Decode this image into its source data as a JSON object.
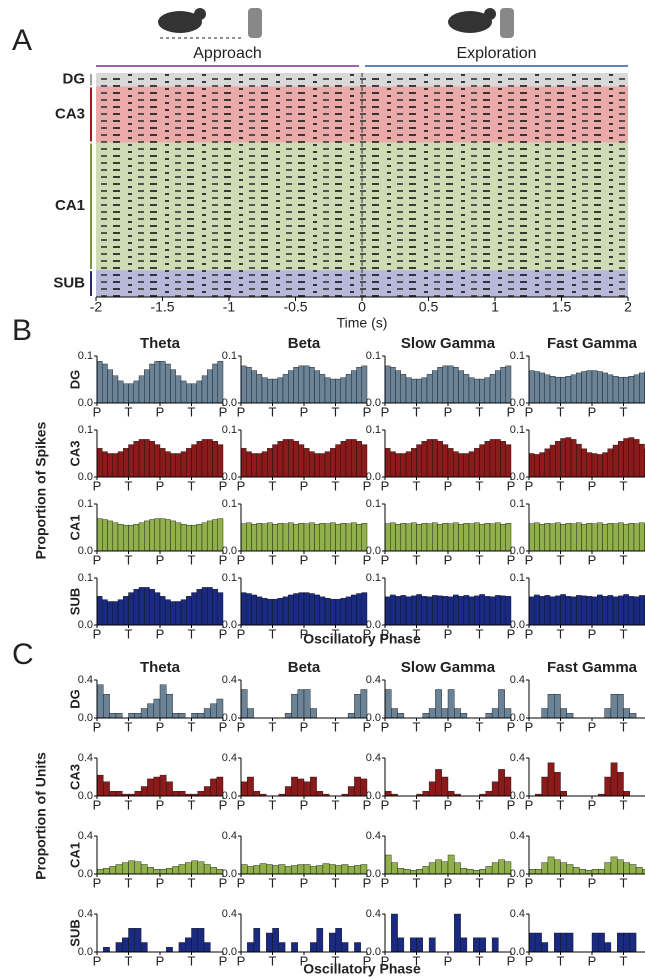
{
  "chart_data": [
    {
      "type": "raster",
      "label": "A",
      "xlabel": "Time (s)",
      "xlim": [
        -2,
        2
      ],
      "xticks": [
        -2,
        -1.5,
        -1,
        -0.5,
        0,
        0.5,
        1,
        1.5,
        2
      ],
      "epochs": [
        {
          "name": "Approach",
          "color": "#7b2f8f"
        },
        {
          "name": "Exploration",
          "color": "#2f5a9a"
        }
      ],
      "regions": [
        {
          "name": "DG",
          "color": "#d9d9d9",
          "label_color": "#a0a0a0"
        },
        {
          "name": "CA3",
          "color": "#eaaaaa",
          "label_color": "#a31a1a"
        },
        {
          "name": "CA1",
          "color": "#cddcb4",
          "label_color": "#7a9a3a"
        },
        {
          "name": "SUB",
          "color": "#b8b8da",
          "label_color": "#2b2b7a"
        }
      ]
    },
    {
      "type": "bar-grid",
      "label": "B",
      "ylabel": "Proportion of Spikes",
      "xlabel": "Oscillatory Phase",
      "columns": [
        "Theta",
        "Beta",
        "Slow Gamma",
        "Fast Gamma"
      ],
      "ylim": [
        0,
        0.1
      ],
      "yticks": [
        {
          "value": 0,
          "label": "0.0"
        },
        {
          "value": 0.1,
          "label": "0.1"
        }
      ],
      "xlim": [
        0,
        720
      ],
      "xticks": [
        {
          "value": 0,
          "label": "P"
        },
        {
          "value": 180,
          "label": "T"
        },
        {
          "value": 360,
          "label": "P"
        },
        {
          "value": 540,
          "label": "T"
        },
        {
          "value": 720,
          "label": "P"
        }
      ],
      "rows": [
        {
          "name": "DG",
          "color": "#6b8397",
          "label_color": "#a0a0a0",
          "values": [
            [
              0.089,
              0.083,
              0.071,
              0.058,
              0.047,
              0.041,
              0.041,
              0.047,
              0.058,
              0.071,
              0.083,
              0.089,
              0.089,
              0.083,
              0.071,
              0.058,
              0.047,
              0.041,
              0.041,
              0.047,
              0.058,
              0.071,
              0.083,
              0.089
            ],
            [
              0.079,
              0.076,
              0.069,
              0.061,
              0.054,
              0.051,
              0.051,
              0.054,
              0.061,
              0.069,
              0.076,
              0.079,
              0.079,
              0.076,
              0.069,
              0.061,
              0.054,
              0.051,
              0.051,
              0.054,
              0.061,
              0.069,
              0.076,
              0.079
            ],
            [
              0.079,
              0.076,
              0.069,
              0.061,
              0.054,
              0.051,
              0.051,
              0.054,
              0.061,
              0.069,
              0.076,
              0.079,
              0.079,
              0.076,
              0.069,
              0.061,
              0.054,
              0.051,
              0.051,
              0.054,
              0.061,
              0.069,
              0.076,
              0.079
            ],
            [
              0.069,
              0.067,
              0.064,
              0.06,
              0.057,
              0.055,
              0.055,
              0.057,
              0.06,
              0.064,
              0.067,
              0.069,
              0.069,
              0.067,
              0.064,
              0.06,
              0.057,
              0.055,
              0.055,
              0.057,
              0.06,
              0.064,
              0.067,
              0.069
            ]
          ]
        },
        {
          "name": "CA3",
          "color": "#8b1a1a",
          "label_color": "#a31a1a",
          "values": [
            [
              0.061,
              0.054,
              0.05,
              0.05,
              0.054,
              0.061,
              0.069,
              0.076,
              0.08,
              0.08,
              0.076,
              0.069,
              0.061,
              0.054,
              0.05,
              0.05,
              0.054,
              0.061,
              0.069,
              0.076,
              0.08,
              0.08,
              0.076,
              0.069
            ],
            [
              0.061,
              0.054,
              0.05,
              0.05,
              0.054,
              0.061,
              0.069,
              0.076,
              0.08,
              0.08,
              0.076,
              0.069,
              0.061,
              0.054,
              0.05,
              0.05,
              0.054,
              0.061,
              0.069,
              0.076,
              0.08,
              0.08,
              0.076,
              0.069
            ],
            [
              0.061,
              0.054,
              0.05,
              0.05,
              0.054,
              0.061,
              0.069,
              0.076,
              0.08,
              0.08,
              0.076,
              0.069,
              0.061,
              0.054,
              0.05,
              0.05,
              0.054,
              0.061,
              0.069,
              0.076,
              0.08,
              0.08,
              0.076,
              0.069
            ],
            [
              0.05,
              0.048,
              0.052,
              0.06,
              0.068,
              0.076,
              0.082,
              0.084,
              0.08,
              0.07,
              0.06,
              0.052,
              0.05,
              0.048,
              0.052,
              0.06,
              0.068,
              0.076,
              0.082,
              0.084,
              0.08,
              0.07,
              0.06,
              0.052
            ]
          ]
        },
        {
          "name": "CA1",
          "color": "#8fb04a",
          "label_color": "#808080",
          "values": [
            [
              0.069,
              0.067,
              0.064,
              0.06,
              0.057,
              0.055,
              0.055,
              0.057,
              0.06,
              0.064,
              0.067,
              0.069,
              0.069,
              0.067,
              0.064,
              0.06,
              0.057,
              0.055,
              0.055,
              0.057,
              0.06,
              0.064,
              0.067,
              0.069
            ],
            [
              0.058,
              0.06,
              0.057,
              0.059,
              0.058,
              0.06,
              0.057,
              0.059,
              0.058,
              0.06,
              0.057,
              0.059,
              0.058,
              0.06,
              0.057,
              0.059,
              0.058,
              0.06,
              0.057,
              0.059,
              0.058,
              0.06,
              0.057,
              0.059
            ],
            [
              0.058,
              0.06,
              0.057,
              0.059,
              0.058,
              0.06,
              0.057,
              0.059,
              0.058,
              0.06,
              0.057,
              0.059,
              0.058,
              0.06,
              0.057,
              0.059,
              0.058,
              0.06,
              0.057,
              0.059,
              0.058,
              0.06,
              0.057,
              0.059
            ],
            [
              0.058,
              0.06,
              0.057,
              0.059,
              0.058,
              0.06,
              0.057,
              0.059,
              0.058,
              0.06,
              0.057,
              0.059,
              0.058,
              0.06,
              0.057,
              0.059,
              0.058,
              0.06,
              0.057,
              0.059,
              0.058,
              0.06,
              0.057,
              0.059
            ]
          ]
        },
        {
          "name": "SUB",
          "color": "#1a2a80",
          "label_color": "#2b2b7a",
          "values": [
            [
              0.061,
              0.054,
              0.05,
              0.05,
              0.054,
              0.061,
              0.069,
              0.076,
              0.08,
              0.08,
              0.076,
              0.069,
              0.061,
              0.054,
              0.05,
              0.05,
              0.054,
              0.061,
              0.069,
              0.076,
              0.08,
              0.08,
              0.076,
              0.069
            ],
            [
              0.069,
              0.067,
              0.064,
              0.06,
              0.057,
              0.055,
              0.055,
              0.057,
              0.06,
              0.064,
              0.067,
              0.069,
              0.069,
              0.067,
              0.064,
              0.06,
              0.057,
              0.055,
              0.055,
              0.057,
              0.06,
              0.064,
              0.067,
              0.069
            ],
            [
              0.06,
              0.064,
              0.061,
              0.063,
              0.06,
              0.062,
              0.065,
              0.061,
              0.06,
              0.063,
              0.062,
              0.061,
              0.06,
              0.064,
              0.061,
              0.063,
              0.06,
              0.062,
              0.065,
              0.061,
              0.06,
              0.063,
              0.062,
              0.061
            ],
            [
              0.06,
              0.064,
              0.061,
              0.063,
              0.06,
              0.062,
              0.065,
              0.061,
              0.06,
              0.063,
              0.062,
              0.061,
              0.06,
              0.064,
              0.061,
              0.063,
              0.06,
              0.062,
              0.065,
              0.061,
              0.06,
              0.063,
              0.062,
              0.061
            ]
          ]
        }
      ]
    },
    {
      "type": "bar-grid",
      "label": "C",
      "ylabel": "Proportion of Units",
      "xlabel": "Oscillatory Phase",
      "columns": [
        "Theta",
        "Beta",
        "Slow Gamma",
        "Fast Gamma"
      ],
      "ylim": [
        0,
        0.4
      ],
      "yticks": [
        {
          "value": 0,
          "label": "0.0"
        },
        {
          "value": 0.4,
          "label": "0.4"
        }
      ],
      "xlim": [
        0,
        720
      ],
      "xticks": [
        {
          "value": 0,
          "label": "P"
        },
        {
          "value": 180,
          "label": "T"
        },
        {
          "value": 360,
          "label": "P"
        },
        {
          "value": 540,
          "label": "T"
        },
        {
          "value": 720,
          "label": "P"
        }
      ],
      "rows": [
        {
          "name": "DG",
          "color": "#6b8397",
          "label_color": "#a0a0a0",
          "values": [
            [
              0.35,
              0.25,
              0.05,
              0.05,
              0,
              0.05,
              0.05,
              0.1,
              0.15,
              0.2,
              0.35,
              0.25,
              0.05,
              0.05,
              0,
              0.05,
              0.05,
              0.1,
              0.15,
              0.2
            ],
            [
              0.3,
              0.1,
              0,
              0,
              0,
              0,
              0,
              0.05,
              0.25,
              0.3,
              0.3,
              0.1,
              0,
              0,
              0,
              0,
              0,
              0.05,
              0.25,
              0.3
            ],
            [
              0.3,
              0.1,
              0.05,
              0,
              0,
              0,
              0.05,
              0.1,
              0.3,
              0.1,
              0.3,
              0.1,
              0.05,
              0,
              0,
              0,
              0.05,
              0.1,
              0.3,
              0.1
            ],
            [
              0,
              0,
              0.1,
              0.25,
              0.25,
              0.1,
              0.05,
              0,
              0,
              0,
              0,
              0,
              0.1,
              0.25,
              0.25,
              0.1,
              0.05,
              0,
              0,
              0
            ]
          ]
        },
        {
          "name": "CA3",
          "color": "#8b1a1a",
          "label_color": "#a31a1a",
          "values": [
            [
              0.22,
              0.15,
              0.05,
              0.05,
              0.02,
              0.02,
              0.05,
              0.1,
              0.18,
              0.2,
              0.22,
              0.15,
              0.05,
              0.05,
              0.02,
              0.02,
              0.05,
              0.1,
              0.18,
              0.2
            ],
            [
              0.15,
              0.2,
              0.05,
              0.02,
              0,
              0,
              0.02,
              0.1,
              0.2,
              0.18,
              0.15,
              0.2,
              0.05,
              0.02,
              0,
              0,
              0.02,
              0.1,
              0.2,
              0.18
            ],
            [
              0.05,
              0.02,
              0,
              0,
              0,
              0.02,
              0.05,
              0.15,
              0.28,
              0.2,
              0.05,
              0.02,
              0,
              0,
              0,
              0.02,
              0.05,
              0.15,
              0.28,
              0.2
            ],
            [
              0,
              0.02,
              0.2,
              0.35,
              0.25,
              0.05,
              0,
              0,
              0,
              0,
              0,
              0.02,
              0.2,
              0.35,
              0.25,
              0.05,
              0,
              0,
              0,
              0
            ]
          ]
        },
        {
          "name": "CA1",
          "color": "#8fb04a",
          "label_color": "#808080",
          "values": [
            [
              0.05,
              0.06,
              0.08,
              0.1,
              0.12,
              0.14,
              0.13,
              0.1,
              0.07,
              0.05,
              0.05,
              0.06,
              0.08,
              0.1,
              0.12,
              0.14,
              0.13,
              0.1,
              0.07,
              0.05
            ],
            [
              0.1,
              0.08,
              0.09,
              0.11,
              0.1,
              0.09,
              0.1,
              0.08,
              0.09,
              0.1,
              0.1,
              0.08,
              0.09,
              0.11,
              0.1,
              0.09,
              0.1,
              0.08,
              0.09,
              0.1
            ],
            [
              0.2,
              0.12,
              0.06,
              0.05,
              0.04,
              0.05,
              0.08,
              0.12,
              0.15,
              0.13,
              0.2,
              0.12,
              0.06,
              0.05,
              0.04,
              0.05,
              0.08,
              0.12,
              0.15,
              0.13
            ],
            [
              0.05,
              0.05,
              0.12,
              0.18,
              0.15,
              0.12,
              0.1,
              0.07,
              0.05,
              0.04,
              0.05,
              0.05,
              0.12,
              0.18,
              0.15,
              0.12,
              0.1,
              0.07,
              0.05,
              0.04
            ]
          ]
        },
        {
          "name": "SUB",
          "color": "#1a2a80",
          "label_color": "#2b2b7a",
          "values": [
            [
              0,
              0.05,
              0,
              0.1,
              0.15,
              0.25,
              0.25,
              0.1,
              0,
              0,
              0,
              0.05,
              0,
              0.1,
              0.15,
              0.25,
              0.25,
              0.1,
              0,
              0
            ],
            [
              0,
              0.1,
              0.25,
              0,
              0.2,
              0.25,
              0.1,
              0,
              0.1,
              0,
              0,
              0.1,
              0.25,
              0,
              0.2,
              0.25,
              0.1,
              0,
              0.1,
              0
            ],
            [
              0,
              0.4,
              0.15,
              0,
              0.15,
              0.15,
              0,
              0.15,
              0,
              0,
              0,
              0.4,
              0.15,
              0,
              0.15,
              0.15,
              0,
              0.15,
              0,
              0
            ],
            [
              0.2,
              0.2,
              0.1,
              0,
              0.2,
              0.2,
              0.2,
              0,
              0,
              0,
              0.2,
              0.2,
              0.1,
              0,
              0.2,
              0.2,
              0.2,
              0,
              0,
              0
            ]
          ]
        }
      ]
    }
  ]
}
